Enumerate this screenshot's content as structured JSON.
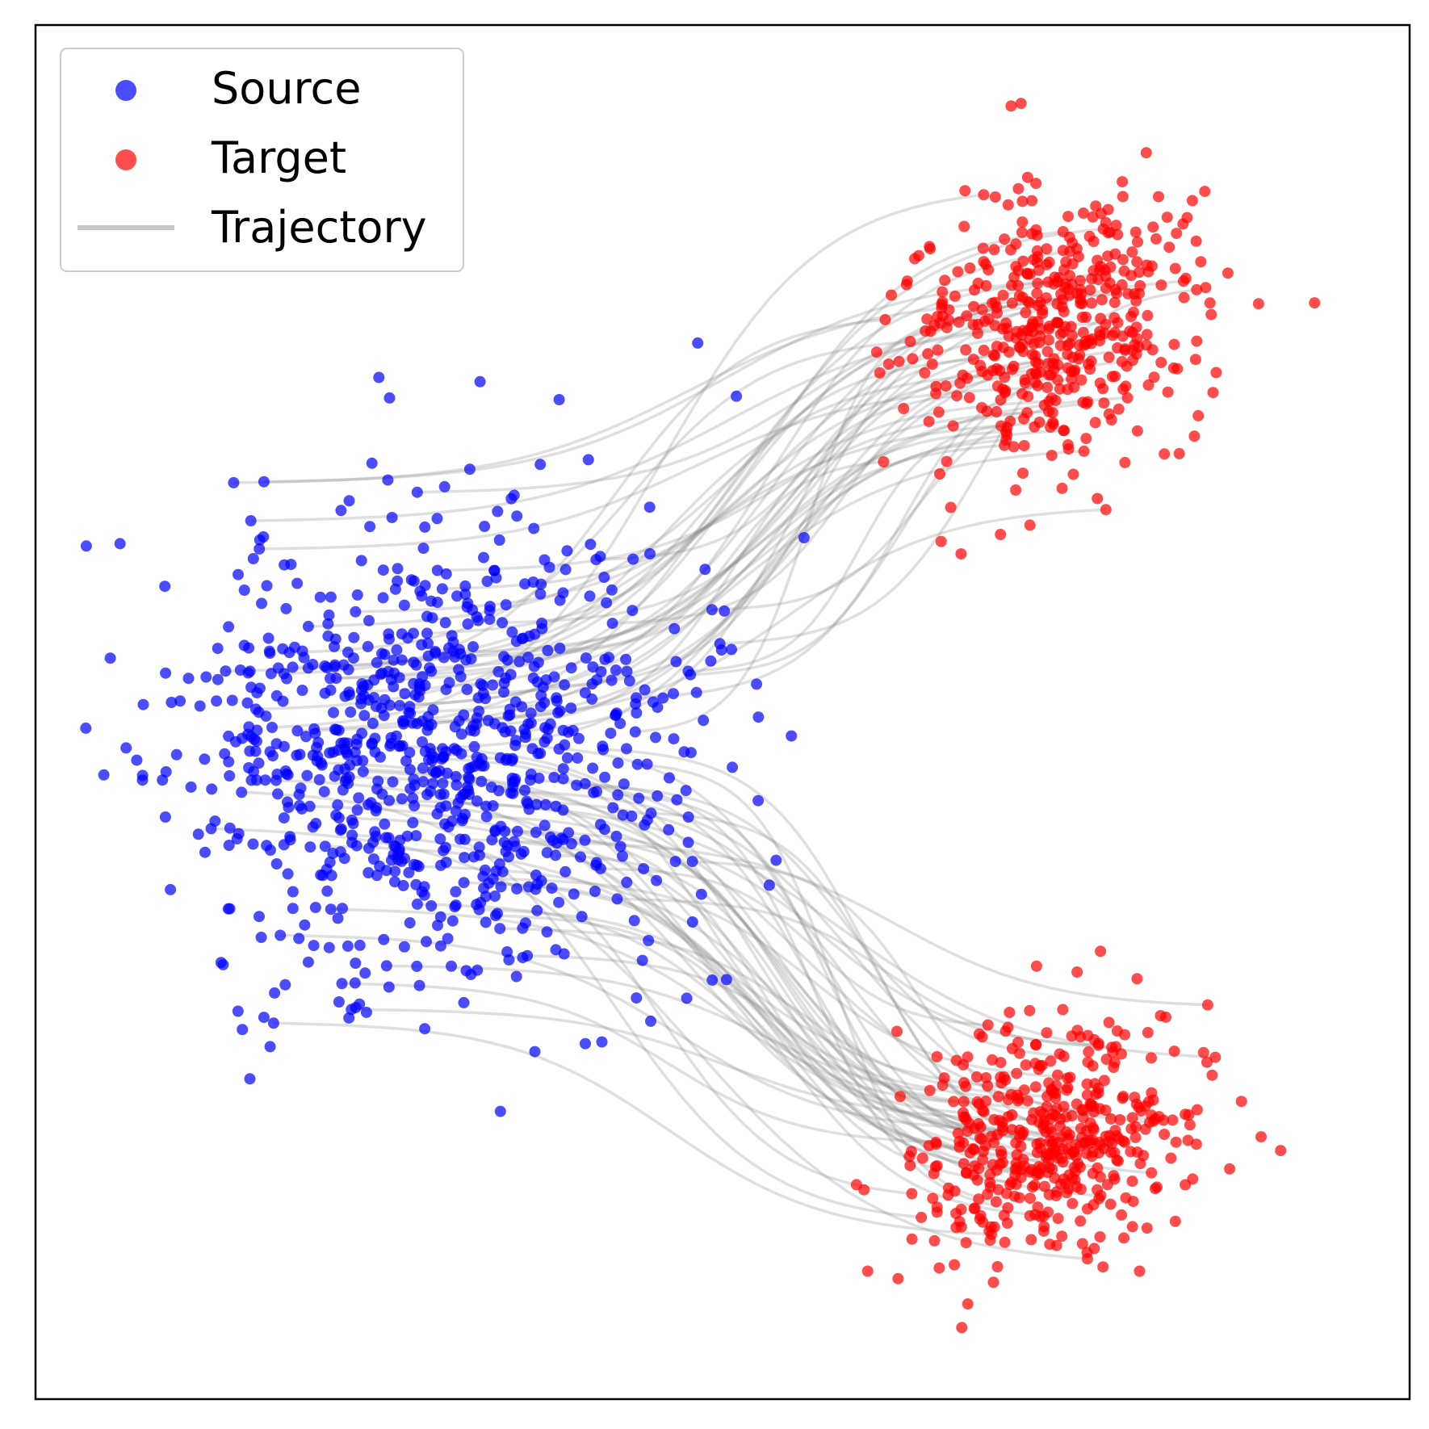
{
  "chart_data": {
    "type": "scatter",
    "title": "",
    "xlabel": "",
    "ylabel": "",
    "xlim": [
      -4,
      4
    ],
    "ylim": [
      -4,
      4
    ],
    "ticks_visible": false,
    "grid": false,
    "legend": {
      "placement": "top-left",
      "entries": [
        {
          "label": "Source",
          "marker": "circle",
          "color": "#0000ff"
        },
        {
          "label": "Target",
          "marker": "circle",
          "color": "#ff0000"
        },
        {
          "label": "Trajectory",
          "marker": "line",
          "color": "#999999"
        }
      ]
    },
    "colors": {
      "source": "#0000ff",
      "target": "#ff0000",
      "trajectory": "#808080"
    },
    "series": [
      {
        "name": "Source",
        "distribution": "gaussian",
        "count": 900,
        "mean": [
          -1.7,
          -0.2
        ],
        "std": [
          0.75,
          0.68
        ],
        "seed": 11,
        "alpha": 0.7
      },
      {
        "name": "Target",
        "distribution": "two gaussian clusters",
        "clusters": [
          {
            "count": 450,
            "mean": [
              1.9,
              2.2
            ],
            "std": [
              0.42,
              0.38
            ],
            "rotation_deg": 30
          },
          {
            "count": 450,
            "mean": [
              1.9,
              -2.5
            ],
            "std": [
              0.42,
              0.32
            ],
            "rotation_deg": 25
          }
        ],
        "seed": 23,
        "alpha": 0.7
      },
      {
        "name": "Trajectory",
        "count": 100,
        "from": "Source",
        "to": "Target",
        "shape": "sigmoid-like curves; split at x≈0 into upper and lower clusters",
        "alpha": 0.2
      }
    ]
  }
}
